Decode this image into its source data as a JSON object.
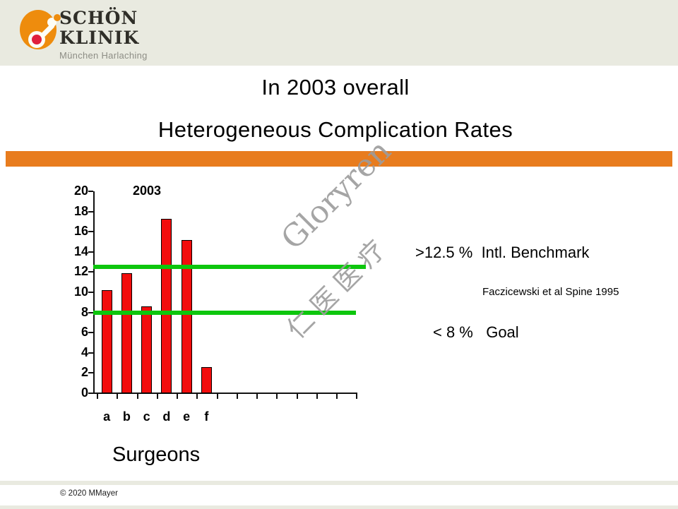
{
  "header": {
    "brand_line1": "SCHÖN",
    "brand_line2": "KLINIK",
    "brand_subtitle": "München Harlaching"
  },
  "title": {
    "line1": "In 2003 overall",
    "line2": "Heterogeneous Complication Rates"
  },
  "watermark": {
    "line1": "Gloryren",
    "line2": "仁医医疗"
  },
  "chart_data": {
    "type": "bar",
    "title": "2003",
    "categories": [
      "a",
      "b",
      "c",
      "d",
      "e",
      "f"
    ],
    "values": [
      10.2,
      11.9,
      8.6,
      17.3,
      15.2,
      2.6
    ],
    "xlabel": "Surgeons",
    "ylabel": "",
    "ylim": [
      0,
      20
    ],
    "yticks": [
      0,
      2,
      4,
      6,
      8,
      10,
      12,
      14,
      16,
      18,
      20
    ],
    "x_tick_slots": 13,
    "grid": false,
    "legend": false,
    "bar_color": "#f20d0d",
    "reference_lines": [
      {
        "value": 12.5,
        "color": "#0dc60d",
        "meaning": "Intl. Benchmark"
      },
      {
        "value": 8,
        "color": "#0dc60d",
        "meaning": "Goal"
      }
    ]
  },
  "annotations": {
    "benchmark": ">12.5 %  Intl. Benchmark",
    "citation": "Faczicewski et al Spine 1995",
    "goal": "< 8 %   Goal"
  },
  "footer": {
    "copyright": "© 2020 MMayer"
  },
  "colors": {
    "accent_orange": "#e87c1e",
    "header_beige": "#e9eae0",
    "bar_red": "#f20d0d",
    "line_green": "#0dc60d",
    "logo_orange": "#ee8c0d",
    "logo_red": "#e01f3d"
  }
}
